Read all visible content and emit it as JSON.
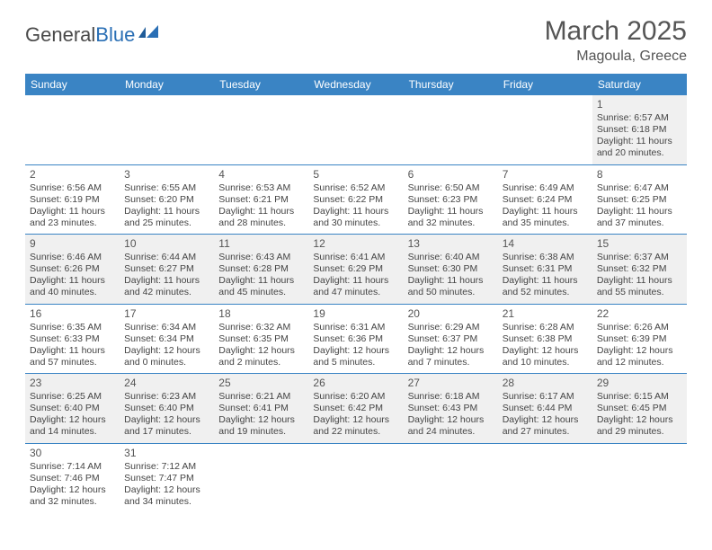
{
  "logo": {
    "part1": "General",
    "part2": "Blue"
  },
  "title": "March 2025",
  "location": "Magoula, Greece",
  "colors": {
    "header_bg": "#3a84c4",
    "header_text": "#ffffff",
    "row_alt_bg": "#f0f0f0",
    "row_bg": "#ffffff",
    "border": "#3a84c4",
    "logo_blue": "#2a6fb5",
    "text": "#444444"
  },
  "typography": {
    "title_fontsize": 30,
    "location_fontsize": 16,
    "dayheader_fontsize": 12,
    "cell_fontsize": 10.5
  },
  "day_headers": [
    "Sunday",
    "Monday",
    "Tuesday",
    "Wednesday",
    "Thursday",
    "Friday",
    "Saturday"
  ],
  "weeks": [
    [
      null,
      null,
      null,
      null,
      null,
      null,
      {
        "n": "1",
        "sunrise": "6:57 AM",
        "sunset": "6:18 PM",
        "daylight": "11 hours and 20 minutes."
      }
    ],
    [
      {
        "n": "2",
        "sunrise": "6:56 AM",
        "sunset": "6:19 PM",
        "daylight": "11 hours and 23 minutes."
      },
      {
        "n": "3",
        "sunrise": "6:55 AM",
        "sunset": "6:20 PM",
        "daylight": "11 hours and 25 minutes."
      },
      {
        "n": "4",
        "sunrise": "6:53 AM",
        "sunset": "6:21 PM",
        "daylight": "11 hours and 28 minutes."
      },
      {
        "n": "5",
        "sunrise": "6:52 AM",
        "sunset": "6:22 PM",
        "daylight": "11 hours and 30 minutes."
      },
      {
        "n": "6",
        "sunrise": "6:50 AM",
        "sunset": "6:23 PM",
        "daylight": "11 hours and 32 minutes."
      },
      {
        "n": "7",
        "sunrise": "6:49 AM",
        "sunset": "6:24 PM",
        "daylight": "11 hours and 35 minutes."
      },
      {
        "n": "8",
        "sunrise": "6:47 AM",
        "sunset": "6:25 PM",
        "daylight": "11 hours and 37 minutes."
      }
    ],
    [
      {
        "n": "9",
        "sunrise": "6:46 AM",
        "sunset": "6:26 PM",
        "daylight": "11 hours and 40 minutes."
      },
      {
        "n": "10",
        "sunrise": "6:44 AM",
        "sunset": "6:27 PM",
        "daylight": "11 hours and 42 minutes."
      },
      {
        "n": "11",
        "sunrise": "6:43 AM",
        "sunset": "6:28 PM",
        "daylight": "11 hours and 45 minutes."
      },
      {
        "n": "12",
        "sunrise": "6:41 AM",
        "sunset": "6:29 PM",
        "daylight": "11 hours and 47 minutes."
      },
      {
        "n": "13",
        "sunrise": "6:40 AM",
        "sunset": "6:30 PM",
        "daylight": "11 hours and 50 minutes."
      },
      {
        "n": "14",
        "sunrise": "6:38 AM",
        "sunset": "6:31 PM",
        "daylight": "11 hours and 52 minutes."
      },
      {
        "n": "15",
        "sunrise": "6:37 AM",
        "sunset": "6:32 PM",
        "daylight": "11 hours and 55 minutes."
      }
    ],
    [
      {
        "n": "16",
        "sunrise": "6:35 AM",
        "sunset": "6:33 PM",
        "daylight": "11 hours and 57 minutes."
      },
      {
        "n": "17",
        "sunrise": "6:34 AM",
        "sunset": "6:34 PM",
        "daylight": "12 hours and 0 minutes."
      },
      {
        "n": "18",
        "sunrise": "6:32 AM",
        "sunset": "6:35 PM",
        "daylight": "12 hours and 2 minutes."
      },
      {
        "n": "19",
        "sunrise": "6:31 AM",
        "sunset": "6:36 PM",
        "daylight": "12 hours and 5 minutes."
      },
      {
        "n": "20",
        "sunrise": "6:29 AM",
        "sunset": "6:37 PM",
        "daylight": "12 hours and 7 minutes."
      },
      {
        "n": "21",
        "sunrise": "6:28 AM",
        "sunset": "6:38 PM",
        "daylight": "12 hours and 10 minutes."
      },
      {
        "n": "22",
        "sunrise": "6:26 AM",
        "sunset": "6:39 PM",
        "daylight": "12 hours and 12 minutes."
      }
    ],
    [
      {
        "n": "23",
        "sunrise": "6:25 AM",
        "sunset": "6:40 PM",
        "daylight": "12 hours and 14 minutes."
      },
      {
        "n": "24",
        "sunrise": "6:23 AM",
        "sunset": "6:40 PM",
        "daylight": "12 hours and 17 minutes."
      },
      {
        "n": "25",
        "sunrise": "6:21 AM",
        "sunset": "6:41 PM",
        "daylight": "12 hours and 19 minutes."
      },
      {
        "n": "26",
        "sunrise": "6:20 AM",
        "sunset": "6:42 PM",
        "daylight": "12 hours and 22 minutes."
      },
      {
        "n": "27",
        "sunrise": "6:18 AM",
        "sunset": "6:43 PM",
        "daylight": "12 hours and 24 minutes."
      },
      {
        "n": "28",
        "sunrise": "6:17 AM",
        "sunset": "6:44 PM",
        "daylight": "12 hours and 27 minutes."
      },
      {
        "n": "29",
        "sunrise": "6:15 AM",
        "sunset": "6:45 PM",
        "daylight": "12 hours and 29 minutes."
      }
    ],
    [
      {
        "n": "30",
        "sunrise": "7:14 AM",
        "sunset": "7:46 PM",
        "daylight": "12 hours and 32 minutes."
      },
      {
        "n": "31",
        "sunrise": "7:12 AM",
        "sunset": "7:47 PM",
        "daylight": "12 hours and 34 minutes."
      },
      null,
      null,
      null,
      null,
      null
    ]
  ],
  "labels": {
    "sunrise": "Sunrise:",
    "sunset": "Sunset:",
    "daylight": "Daylight:"
  }
}
